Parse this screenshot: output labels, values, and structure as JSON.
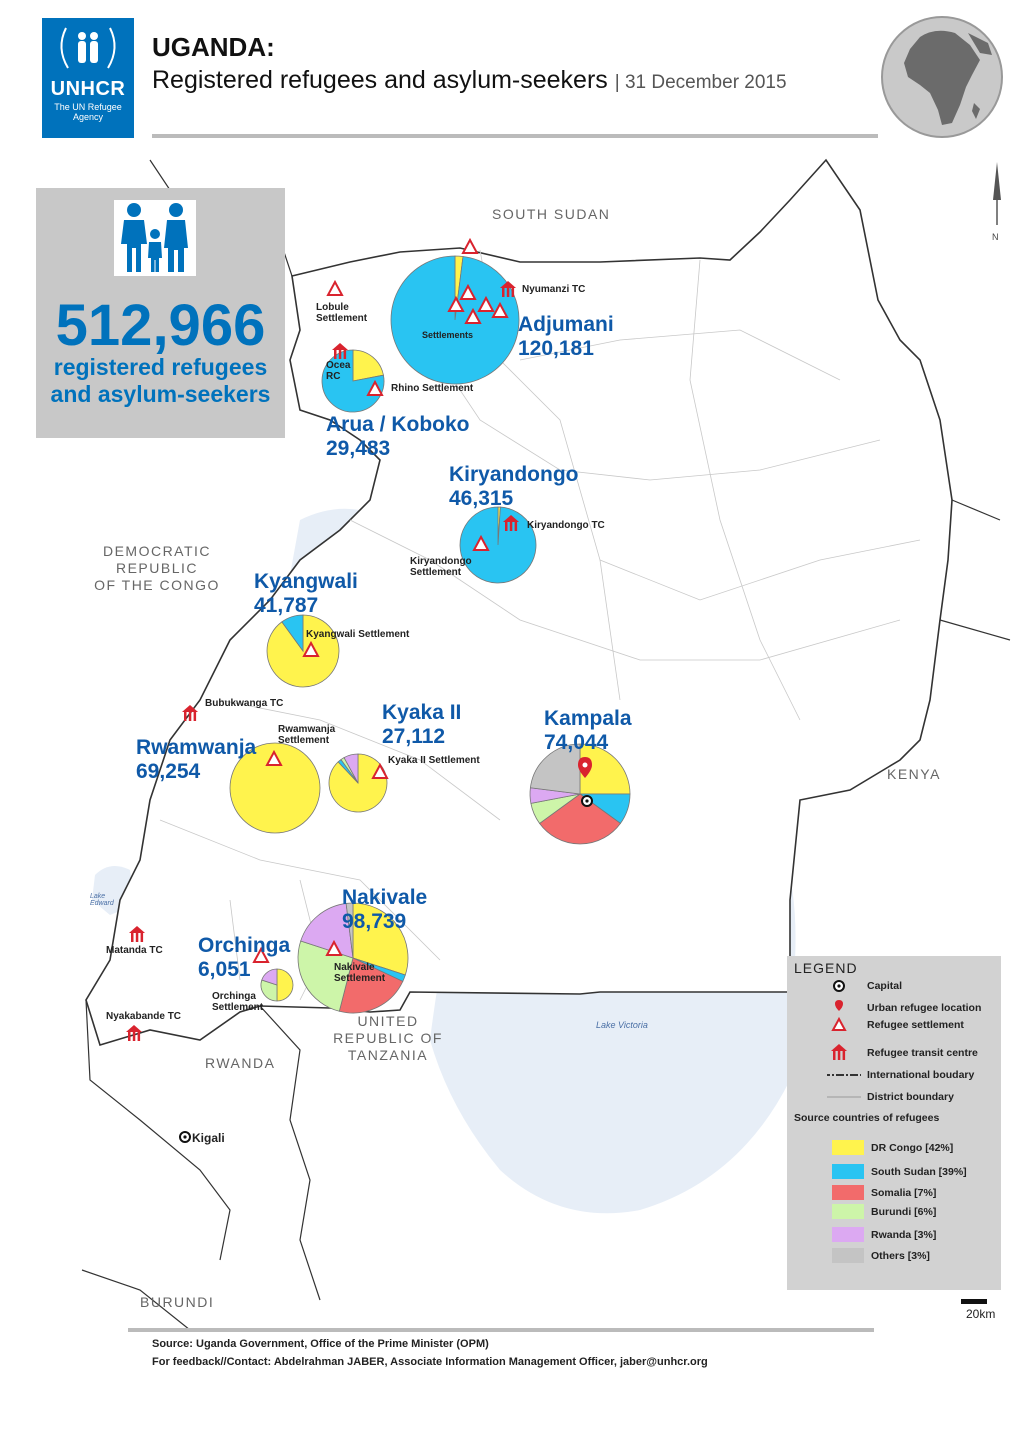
{
  "header": {
    "logo_text": "UNHCR",
    "logo_sub": "The UN Refugee Agency",
    "title": "UGANDA:",
    "subtitle": "Registered refugees and asylum-seekers",
    "date": "| 31 December 2015"
  },
  "summary": {
    "total": "512,966",
    "label_line1": "registered refugees",
    "label_line2": "and asylum-seekers"
  },
  "countries": {
    "south_sudan": "SOUTH SUDAN",
    "drc_1": "DEMOCRATIC",
    "drc_2": "REPUBLIC",
    "drc_3": "OF THE CONGO",
    "kenya": "KENYA",
    "tanzania_1": "UNITED",
    "tanzania_2": "REPUBLIC OF",
    "tanzania_3": "TANZANIA",
    "rwanda": "RWANDA",
    "burundi": "BURUNDI"
  },
  "places": {
    "kigali": "Kigali",
    "lake_victoria": "Lake Victoria",
    "lake_edward": "Lake Edward"
  },
  "sites": [
    {
      "name": "Adjumani",
      "total": "120,181"
    },
    {
      "name": "Arua / Koboko",
      "total": "29,483"
    },
    {
      "name": "Kiryandongo",
      "total": "46,315"
    },
    {
      "name": "Kyangwali",
      "total": "41,787"
    },
    {
      "name": "Kyaka II",
      "total": "27,112"
    },
    {
      "name": "Kampala",
      "total": "74,044"
    },
    {
      "name": "Rwamwanja",
      "total": "69,254"
    },
    {
      "name": "Nakivale",
      "total": "98,739"
    },
    {
      "name": "Orchinga",
      "total": "6,051"
    }
  ],
  "settlement_labels": {
    "lobule": "Lobule Settlement",
    "nyumanzi": "Nyumanzi TC",
    "settlements": "Settlements",
    "ocea": "Ocea RC",
    "rhino": "Rhino Settlement",
    "kiryandongo_tc": "Kiryandongo TC",
    "kiryandongo_s": "Kiryandongo Settlement",
    "kyangwali_s": "Kyangwali Settlement",
    "bubukwanga": "Bubukwanga TC",
    "rwamwanja_s": "Rwamwanja Settlement",
    "kyaka_s": "Kyaka II Settlement",
    "matanda": "Matanda TC",
    "nyakabande": "Nyakabande TC",
    "orchinga_s": "Orchinga Settlement",
    "nakivale_s": "Nakivale Settlement"
  },
  "legend": {
    "title": "LEGEND",
    "items": [
      "Capital",
      "Urban refugee location",
      "Refugee settlement",
      "Refugee transit centre",
      "International boudary",
      "District boundary"
    ],
    "source_title": "Source countries of refugees",
    "sources": [
      {
        "label": "DR Congo [42%]",
        "color": "#fff34d"
      },
      {
        "label": "South Sudan [39%]",
        "color": "#29c4f2"
      },
      {
        "label": "Somalia [7%]",
        "color": "#f26b6b"
      },
      {
        "label": "Burundi [6%]",
        "color": "#cdf5a9"
      },
      {
        "label": "Rwanda [3%]",
        "color": "#dca9f2"
      },
      {
        "label": "Others   [3%]",
        "color": "#c4c4c4"
      }
    ]
  },
  "scale": "20km",
  "north": "N",
  "footer": {
    "source": "Source: Uganda Government, Office of the Prime Minister (OPM)",
    "contact": "For feedback//Contact: Abdelrahman JABER, Associate Information Management Officer, jaber@unhcr.org"
  }
}
